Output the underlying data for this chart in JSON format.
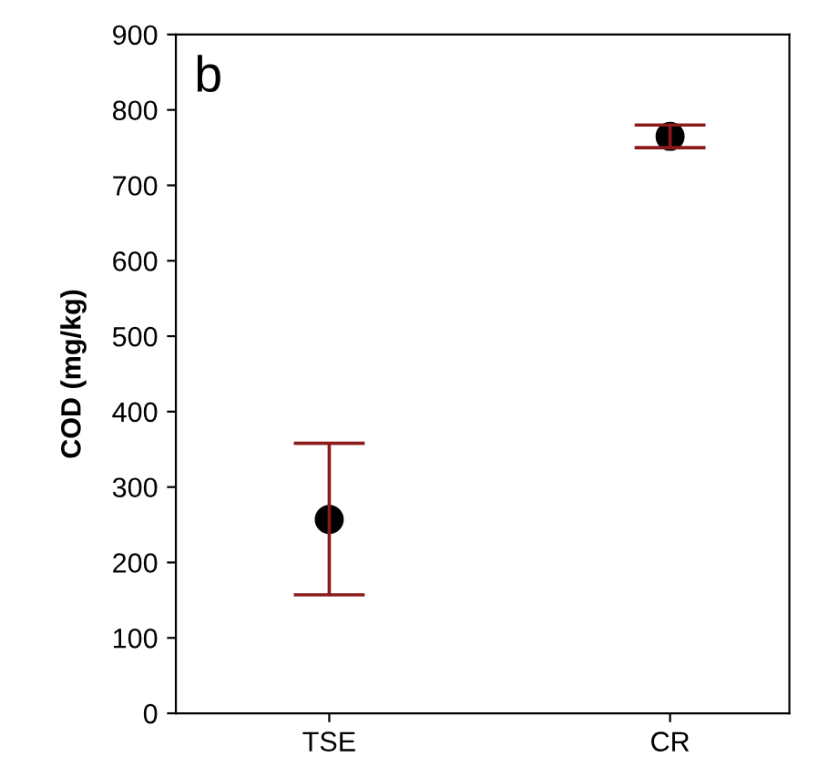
{
  "chart_data": {
    "type": "scatter",
    "ylabel": "COD (mg/kg)",
    "annotations": [
      "b"
    ],
    "categories": [
      "TSE",
      "CR"
    ],
    "series": [
      {
        "color": "#000000",
        "values": [
          257,
          765
        ],
        "errors": [
          [
            157,
            358
          ],
          [
            750,
            780
          ]
        ]
      }
    ],
    "marker": "circle",
    "ylim": [
      0,
      900
    ],
    "yticks": [
      0,
      100,
      200,
      300,
      400,
      500,
      600,
      700,
      800,
      900
    ],
    "grid": false,
    "legend": false
  }
}
